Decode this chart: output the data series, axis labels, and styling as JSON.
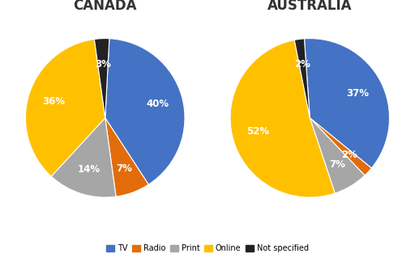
{
  "canada": {
    "title": "CANADA",
    "values": [
      40,
      7,
      14,
      36,
      3
    ],
    "colors": [
      "#4472C4",
      "#E36C0A",
      "#A6A6A6",
      "#FFC000",
      "#222222"
    ],
    "startangle": 87,
    "counterclock": false
  },
  "australia": {
    "title": "AUSTRALIA",
    "values": [
      37,
      2,
      7,
      52,
      2
    ],
    "colors": [
      "#4472C4",
      "#E36C0A",
      "#A6A6A6",
      "#FFC000",
      "#222222"
    ],
    "startangle": 94,
    "counterclock": false
  },
  "legend_labels": [
    "TV",
    "Radio",
    "Print",
    "Online",
    "Not specified"
  ],
  "legend_colors": [
    "#4472C4",
    "#E36C0A",
    "#A6A6A6",
    "#FFC000",
    "#222222"
  ],
  "background_color": "#FFFFFF",
  "title_fontsize": 12,
  "pct_fontsize": 8.5,
  "pct_distance": 0.68
}
